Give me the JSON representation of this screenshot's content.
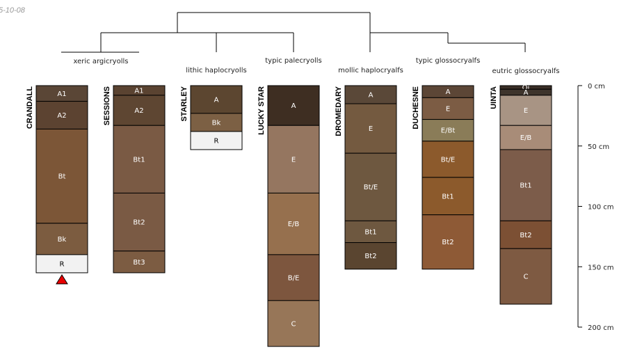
{
  "date_stamp": "5-10-08",
  "groups": [
    {
      "id": "xeric",
      "label": "xeric argicryolls"
    },
    {
      "id": "lithic",
      "label": "lithic haplocryolls"
    },
    {
      "id": "typic_pale",
      "label": "typic palecryolls"
    },
    {
      "id": "mollic",
      "label": "mollic haplocryalfs"
    },
    {
      "id": "typic_glosso",
      "label": "typic glossocryalfs"
    },
    {
      "id": "eutric",
      "label": "eutric glossocryalfs"
    }
  ],
  "depth_scale": {
    "unit": "cm",
    "ticks": [
      {
        "value": 0,
        "label": "0  cm"
      },
      {
        "value": 50,
        "label": "50  cm"
      },
      {
        "value": 100,
        "label": "100  cm"
      },
      {
        "value": 150,
        "label": "150  cm"
      },
      {
        "value": 200,
        "label": "200  cm"
      }
    ]
  },
  "profiles": [
    {
      "name": "CRANDALL",
      "group": "xeric",
      "marker": "red-triangle-icon",
      "horizons": [
        {
          "name": "A1",
          "top": 0,
          "bottom": 13,
          "color": "#5a4636",
          "text": "#ffffff"
        },
        {
          "name": "A2",
          "top": 13,
          "bottom": 36,
          "color": "#5c4331",
          "text": "#ffffff"
        },
        {
          "name": "Bt",
          "top": 36,
          "bottom": 114,
          "color": "#7c5637",
          "text": "#ffffff"
        },
        {
          "name": "Bk",
          "top": 114,
          "bottom": 140,
          "color": "#7c5c40",
          "text": "#ffffff"
        },
        {
          "name": "R",
          "top": 140,
          "bottom": 155,
          "color": "#f2f2f2",
          "text": "#000000"
        }
      ]
    },
    {
      "name": "SESSIONS",
      "group": "xeric",
      "horizons": [
        {
          "name": "A1",
          "top": 0,
          "bottom": 8,
          "color": "#5a4331",
          "text": "#ffffff"
        },
        {
          "name": "A2",
          "top": 8,
          "bottom": 33,
          "color": "#5e4632",
          "text": "#ffffff"
        },
        {
          "name": "Bt1",
          "top": 33,
          "bottom": 89,
          "color": "#7a5a44",
          "text": "#ffffff"
        },
        {
          "name": "Bt2",
          "top": 89,
          "bottom": 137,
          "color": "#7a5a44",
          "text": "#ffffff"
        },
        {
          "name": "Bt3",
          "top": 137,
          "bottom": 155,
          "color": "#7c5c42",
          "text": "#ffffff"
        }
      ]
    },
    {
      "name": "STARLEY",
      "group": "lithic",
      "horizons": [
        {
          "name": "A",
          "top": 0,
          "bottom": 23,
          "color": "#5c4630",
          "text": "#ffffff"
        },
        {
          "name": "Bk",
          "top": 23,
          "bottom": 38,
          "color": "#7c6044",
          "text": "#ffffff"
        },
        {
          "name": "R",
          "top": 38,
          "bottom": 53,
          "color": "#f2f2f2",
          "text": "#000000"
        }
      ]
    },
    {
      "name": "LUCKY STAR",
      "group": "typic_pale",
      "horizons": [
        {
          "name": "A",
          "top": 0,
          "bottom": 33,
          "color": "#3e2e22",
          "text": "#ffffff"
        },
        {
          "name": "E",
          "top": 33,
          "bottom": 89,
          "color": "#957660",
          "text": "#ffffff"
        },
        {
          "name": "E/B",
          "top": 89,
          "bottom": 140,
          "color": "#96704e",
          "text": "#ffffff"
        },
        {
          "name": "B/E",
          "top": 140,
          "bottom": 178,
          "color": "#7d563e",
          "text": "#ffffff"
        },
        {
          "name": "C",
          "top": 178,
          "bottom": 216,
          "color": "#977658",
          "text": "#ffffff"
        }
      ]
    },
    {
      "name": "DROMEDARY",
      "group": "mollic",
      "horizons": [
        {
          "name": "A",
          "top": 0,
          "bottom": 15,
          "color": "#5a4838",
          "text": "#ffffff"
        },
        {
          "name": "E",
          "top": 15,
          "bottom": 56,
          "color": "#745a40",
          "text": "#ffffff"
        },
        {
          "name": "Bt/E",
          "top": 56,
          "bottom": 112,
          "color": "#6e5840",
          "text": "#ffffff"
        },
        {
          "name": "Bt1",
          "top": 112,
          "bottom": 130,
          "color": "#6e5840",
          "text": "#ffffff"
        },
        {
          "name": "Bt2",
          "top": 130,
          "bottom": 152,
          "color": "#5a4530",
          "text": "#ffffff"
        }
      ]
    },
    {
      "name": "DUCHESNE",
      "group": "typic_glosso",
      "horizons": [
        {
          "name": "A",
          "top": 0,
          "bottom": 10,
          "color": "#5c4636",
          "text": "#ffffff"
        },
        {
          "name": "E",
          "top": 10,
          "bottom": 28,
          "color": "#7c5c44",
          "text": "#ffffff"
        },
        {
          "name": "E/Bt",
          "top": 28,
          "bottom": 46,
          "color": "#8a7c58",
          "text": "#ffffff"
        },
        {
          "name": "Bt/E",
          "top": 46,
          "bottom": 76,
          "color": "#8c5a2c",
          "text": "#ffffff"
        },
        {
          "name": "Bt1",
          "top": 76,
          "bottom": 107,
          "color": "#8c5a2c",
          "text": "#ffffff"
        },
        {
          "name": "Bt2",
          "top": 107,
          "bottom": 152,
          "color": "#8e5a36",
          "text": "#ffffff"
        }
      ]
    },
    {
      "name": "UINTA",
      "group": "eutric",
      "horizons": [
        {
          "name": "Oi",
          "top": 0,
          "bottom": 3,
          "color": "#3a2e26",
          "text": "#ffffff"
        },
        {
          "name": "A",
          "top": 3,
          "bottom": 8,
          "color": "#3e342c",
          "text": "#ffffff"
        },
        {
          "name": "E",
          "top": 8,
          "bottom": 33,
          "color": "#a89484",
          "text": "#ffffff"
        },
        {
          "name": "E/B",
          "top": 33,
          "bottom": 53,
          "color": "#a88c78",
          "text": "#ffffff"
        },
        {
          "name": "Bt1",
          "top": 53,
          "bottom": 112,
          "color": "#7c5c4a",
          "text": "#ffffff"
        },
        {
          "name": "Bt2",
          "top": 112,
          "bottom": 135,
          "color": "#7c5034",
          "text": "#ffffff"
        },
        {
          "name": "C",
          "top": 135,
          "bottom": 181,
          "color": "#7e5a42",
          "text": "#ffffff"
        }
      ]
    }
  ]
}
